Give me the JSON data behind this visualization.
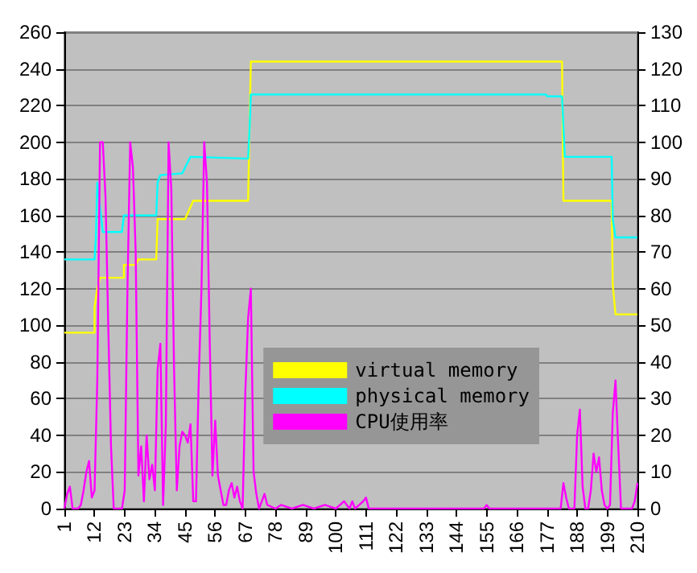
{
  "chart_data": {
    "type": "line",
    "xlim": [
      1,
      210
    ],
    "xticks": [
      1,
      12,
      23,
      34,
      45,
      56,
      67,
      78,
      89,
      100,
      111,
      122,
      133,
      144,
      155,
      166,
      177,
      188,
      199,
      210
    ],
    "ylim": [
      0,
      260
    ],
    "yticks": [
      0,
      20,
      40,
      60,
      80,
      100,
      120,
      140,
      160,
      180,
      200,
      220,
      240,
      260
    ],
    "y2lim": [
      0,
      130
    ],
    "y2ticks": [
      0,
      10,
      20,
      30,
      40,
      50,
      60,
      70,
      80,
      90,
      100,
      110,
      120,
      130
    ],
    "grid": "y",
    "legend": "bottom right",
    "marker": "none",
    "line_style": "solid",
    "series": [
      {
        "name": "virtual memory",
        "color": "#ffff00",
        "x": [
          1,
          12,
          12,
          13,
          14,
          22.7,
          22.7,
          27,
          28,
          34.5,
          35,
          45,
          48,
          68,
          69,
          182.5,
          183,
          200.6,
          201,
          202,
          210
        ],
        "values": [
          96,
          96,
          110,
          120,
          126,
          126,
          133,
          133,
          136,
          136,
          158,
          158,
          168,
          168,
          244,
          244,
          168,
          168,
          122,
          106,
          106
        ]
      },
      {
        "name": "physical memory",
        "color": "#00ffff",
        "x": [
          1,
          12,
          12.5,
          13,
          15,
          22,
          22.7,
          34.5,
          35,
          36,
          44,
          47,
          68,
          68.5,
          69,
          176.6,
          177,
          182.5,
          183.5,
          200.6,
          201,
          202,
          210
        ],
        "values": [
          136,
          136,
          148,
          178,
          151,
          151,
          160,
          160,
          178,
          182,
          183,
          192,
          191,
          206,
          226,
          226,
          225,
          225,
          192,
          192,
          158,
          148,
          148
        ]
      },
      {
        "name": "CPU使用率",
        "color": "#ff00ff",
        "axis": "y2",
        "x": [
          1,
          2,
          3,
          4,
          6,
          7,
          8,
          9,
          10,
          11,
          12,
          13,
          14,
          15,
          16,
          17,
          18,
          19,
          22,
          23,
          24,
          25,
          26,
          27,
          28,
          29,
          30,
          31,
          32,
          33,
          34,
          35,
          36,
          37,
          38,
          39,
          40,
          41,
          42,
          43,
          44,
          45,
          46,
          47,
          48,
          49,
          50,
          51,
          52,
          53,
          54,
          55,
          56,
          57,
          58,
          59,
          60,
          61,
          62,
          63,
          64,
          65,
          66,
          67,
          68,
          69,
          70,
          71,
          72,
          73,
          74,
          75,
          78,
          80,
          84,
          88,
          92,
          96,
          100,
          103,
          105,
          106,
          107,
          110,
          111,
          112,
          115,
          154,
          155,
          156,
          182,
          183,
          184,
          185,
          187,
          188,
          189,
          190,
          191,
          192,
          193,
          194,
          195,
          196,
          197,
          198,
          199,
          200,
          201,
          202,
          203,
          204,
          208,
          209,
          210
        ],
        "values": [
          0,
          4,
          6,
          0,
          0,
          1,
          5,
          10,
          13,
          3,
          5,
          35,
          100,
          100,
          85,
          50,
          17,
          0,
          0,
          5,
          60,
          100,
          93,
          70,
          9,
          17,
          2,
          20,
          8,
          12,
          5,
          38,
          45,
          1,
          23,
          100,
          87,
          38,
          5,
          17,
          21,
          20,
          18,
          23,
          2,
          2,
          35,
          60,
          100,
          89,
          46,
          9,
          24,
          9,
          5,
          1,
          1,
          5,
          7,
          3,
          6,
          2,
          0,
          32,
          52,
          60,
          10,
          4,
          0,
          2,
          4,
          1,
          0,
          1,
          0,
          1,
          0,
          1,
          0,
          2,
          0,
          2,
          0,
          2,
          3,
          0,
          0,
          0,
          1,
          0,
          0,
          7,
          3,
          0,
          0,
          20,
          27,
          6,
          0,
          0,
          5,
          15,
          10,
          14,
          5,
          1,
          0,
          1,
          26,
          35,
          17,
          0,
          0,
          2,
          7
        ]
      }
    ]
  }
}
